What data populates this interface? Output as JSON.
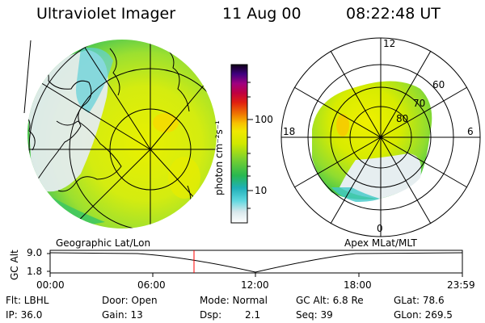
{
  "header": {
    "instrument": "Ultraviolet Imager",
    "date": "11 Aug 00",
    "time": "08:22:48 UT"
  },
  "colorbar": {
    "unit_label": "photon cm⁻²s⁻¹",
    "tick_100": "100",
    "tick_10": "10"
  },
  "left_panel": {
    "caption": "Geographic Lat/Lon"
  },
  "right_panel": {
    "caption": "Apex MLat/MLT",
    "mlt_top": "12",
    "mlt_left": "18",
    "mlt_right": "6",
    "mlt_bottom": "0",
    "lat_60": "60",
    "lat_70": "70",
    "lat_80": "80"
  },
  "altitude_plot": {
    "ylabel": "GC Alt",
    "y_max": "9.0",
    "y_min": "1.8",
    "x_ticks": [
      "00:00",
      "06:00",
      "12:00",
      "18:00",
      "23:59"
    ],
    "marker_time_fraction": 0.349
  },
  "info": {
    "flt": "Flt: LBHL",
    "ip": "IP: 36.0",
    "door": "Door: Open",
    "gain": "Gain: 13",
    "mode": "Mode: Normal",
    "dsp_label": "Dsp:",
    "dsp_value": "2.1",
    "gc_alt": "GC Alt: 6.8 Re",
    "seq": "Seq: 39",
    "glat": "GLat: 78.6",
    "glon": "GLon: 269.5"
  },
  "colors": {
    "aurora_green": "#3cc83c",
    "aurora_yellow": "#e6f000",
    "aurora_cyan": "#3cd2dc",
    "aurora_white": "#e8eef0",
    "marker": "#ff0000"
  }
}
